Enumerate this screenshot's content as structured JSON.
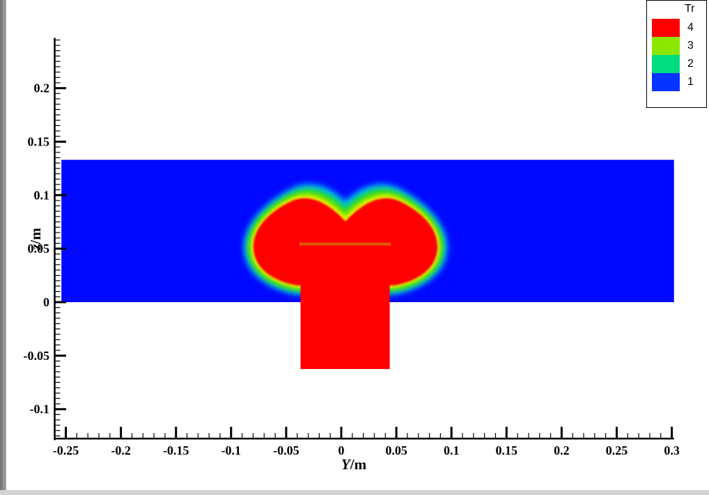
{
  "window": {
    "bg": "#ffffff",
    "left_edge": "#8a8a8a",
    "bottom_edge": "#d2d2d2"
  },
  "chart_data": {
    "type": "heatmap",
    "variant": "2d-contour-flood (Tecplot-style tracer field)",
    "title": "",
    "xlabel": "Y/m",
    "ylabel": "z/m",
    "xlim": [
      -0.26,
      0.302
    ],
    "ylim": [
      -0.129,
      0.247
    ],
    "grid": false,
    "x_minor_step": 0.01,
    "y_minor_step": 0.005,
    "x_major_ticks": [
      {
        "v": -0.25,
        "label": "-0.25"
      },
      {
        "v": -0.2,
        "label": "-0.2"
      },
      {
        "v": -0.15,
        "label": "-0.15"
      },
      {
        "v": -0.1,
        "label": "-0.1"
      },
      {
        "v": -0.05,
        "label": "-0.05"
      },
      {
        "v": 0,
        "label": "0"
      },
      {
        "v": 0.05,
        "label": "0.05"
      },
      {
        "v": 0.1,
        "label": "0.1"
      },
      {
        "v": 0.15,
        "label": "0.15"
      },
      {
        "v": 0.2,
        "label": "0.2"
      },
      {
        "v": 0.25,
        "label": "0.25"
      },
      {
        "v": 0.3,
        "label": "0.3"
      }
    ],
    "y_major_ticks": [
      {
        "v": -0.1,
        "label": "-0.1"
      },
      {
        "v": -0.05,
        "label": "-0.05"
      },
      {
        "v": 0,
        "label": "0"
      },
      {
        "v": 0.05,
        "label": "0.05"
      },
      {
        "v": 0.1,
        "label": "0.1"
      },
      {
        "v": 0.15,
        "label": "0.15"
      },
      {
        "v": 0.2,
        "label": "0.2"
      }
    ],
    "legend": {
      "title": "Tr",
      "position": "top-right",
      "entries": [
        {
          "level": "4",
          "color": "#ff0000"
        },
        {
          "level": "3",
          "color": "#8ce600"
        },
        {
          "level": "2",
          "color": "#00dc82"
        },
        {
          "level": "1",
          "color": "#0533ff"
        }
      ]
    },
    "colormap": {
      "background_low": "#0008ff",
      "rim_cyan": "#00c6f5",
      "rim_green": "#1fd626",
      "rim_chartreuse": "#90e800",
      "rim_yellow": "#e6f000",
      "core_red": "#ff0000",
      "column_top_line": "#e05a00"
    },
    "regions": [
      {
        "name": "channel-band",
        "shape": "rect",
        "y_range": [
          -0.254,
          0.302
        ],
        "z_range": [
          0,
          0.133
        ],
        "level": "low tracer (blue, Tr ~ 0-1)"
      },
      {
        "name": "jet-column",
        "shape": "rect",
        "y_range": [
          -0.037,
          0.044
        ],
        "z_range": [
          -0.0625,
          0.053
        ],
        "level": "4 (red)"
      },
      {
        "name": "jet-plume",
        "shape": "mushroom-heart contour",
        "y_range": [
          -0.088,
          0.088
        ],
        "z_range": [
          0,
          0.101
        ],
        "core_level": "4",
        "rim_levels": [
          "3",
          "2",
          "1"
        ]
      }
    ]
  }
}
